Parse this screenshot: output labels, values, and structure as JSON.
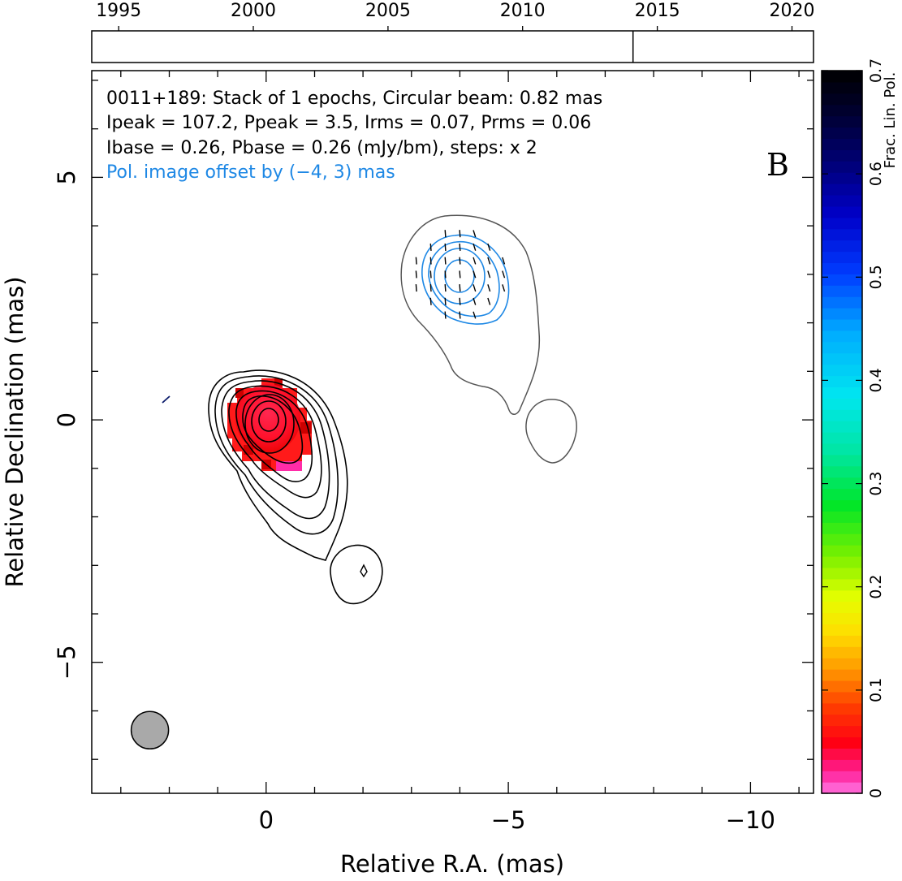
{
  "chart_data": {
    "type": "contour",
    "xlabel": "Relative R.A. (mas)",
    "ylabel": "Relative Declination (mas)",
    "xlim": [
      3.6,
      -11.3
    ],
    "ylim": [
      -7.7,
      7.2
    ],
    "x_ticks": [
      0,
      -5,
      -10
    ],
    "x_tick_labels": [
      "0",
      "−5",
      "−10"
    ],
    "y_ticks": [
      -5,
      0,
      5
    ],
    "y_tick_labels": [
      "−5",
      "0",
      "5"
    ],
    "annotation_lines": [
      "0011+189: Stack of 1 epochs, Circular beam: 0.82 mas",
      "Ipeak = 107.2, Ppeak = 3.5, Irms = 0.07, Prms = 0.06",
      "Ibase = 0.26, Pbase = 0.26 (mJy/bm), steps: x 2"
    ],
    "offset_note": "Pol. image offset by (−4, 3) mas",
    "panel_letter": "B",
    "beam": {
      "ra": 2.4,
      "dec": -6.4,
      "diameter_mas": 0.82
    },
    "core": {
      "ra": 0,
      "dec": 0
    },
    "stokes_i_contour_levels_mJy": [
      0.26,
      0.52,
      1.04,
      2.08,
      4.16,
      8.32,
      16.64,
      33.28,
      66.56
    ],
    "pol_contour_levels_mJy": [
      0.26,
      0.52,
      1.04,
      2.08
    ],
    "pol_center": {
      "ra": -4,
      "dec": 3
    },
    "timeline": {
      "years": [
        "1995",
        "2000",
        "2005",
        "2010",
        "2015",
        "2020"
      ],
      "year_values": [
        1995,
        2000,
        2005,
        2010,
        2015,
        2020
      ],
      "range": [
        1994,
        2020.8
      ],
      "epochs": [
        2014.1
      ]
    },
    "colorbar": {
      "label": "Frac. Lin. Pol.",
      "range": [
        0,
        0.7
      ],
      "ticks": [
        "0",
        "0.1",
        "0.2",
        "0.3",
        "0.4",
        "0.5",
        "0.6",
        "0.7"
      ],
      "tick_values": [
        0,
        0.1,
        0.2,
        0.3,
        0.4,
        0.5,
        0.6,
        0.7
      ]
    },
    "colors": {
      "stokes_i_contours": "#000000",
      "outer_contour": "#555555",
      "polarization_contours": "#1e88e5",
      "offset_note": "#1e88e5",
      "beam_fill": "#a9a9a9"
    }
  }
}
